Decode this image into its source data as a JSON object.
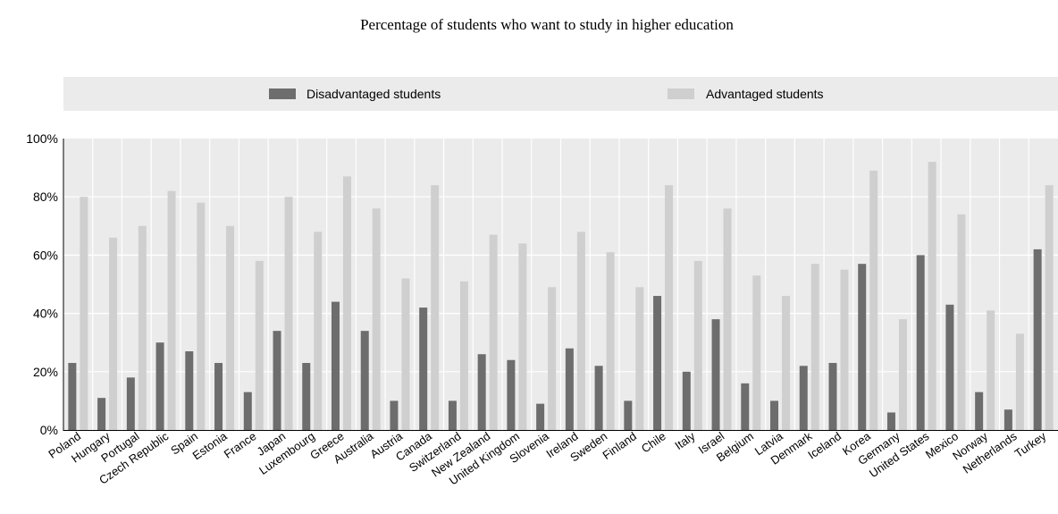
{
  "chart_data": {
    "type": "bar",
    "title": "Percentage of students who want to study in higher education",
    "xlabel": "",
    "ylabel": "",
    "ylim": [
      0,
      100
    ],
    "yticks": [
      "0%",
      "20%",
      "40%",
      "60%",
      "80%",
      "100%"
    ],
    "grid": true,
    "legend_position": "top",
    "categories": [
      "Poland",
      "Hungary",
      "Portugal",
      "Czech Republic",
      "Spain",
      "Estonia",
      "France",
      "Japan",
      "Luxembourg",
      "Greece",
      "Australia",
      "Austria",
      "Canada",
      "Switzerland",
      "New Zealand",
      "United Kingdom",
      "Slovenia",
      "Ireland",
      "Sweden",
      "Finland",
      "Chile",
      "Italy",
      "Israel",
      "Belgium",
      "Latvia",
      "Denmark",
      "Iceland",
      "Korea",
      "Germany",
      "United States",
      "Mexico",
      "Norway",
      "Netherlands",
      "Turkey"
    ],
    "series": [
      {
        "name": "Disadvantaged students",
        "color": "#6d6d6d",
        "values": [
          23,
          11,
          18,
          30,
          27,
          23,
          13,
          34,
          23,
          44,
          34,
          10,
          42,
          10,
          26,
          24,
          9,
          28,
          22,
          10,
          46,
          20,
          38,
          16,
          10,
          22,
          23,
          57,
          6,
          60,
          43,
          13,
          7,
          62
        ]
      },
      {
        "name": "Advantaged students",
        "color": "#cfcfcf",
        "values": [
          80,
          66,
          70,
          82,
          78,
          70,
          58,
          80,
          68,
          87,
          76,
          52,
          84,
          51,
          67,
          64,
          49,
          68,
          61,
          49,
          84,
          58,
          76,
          53,
          46,
          57,
          55,
          89,
          38,
          92,
          74,
          41,
          33,
          84
        ]
      }
    ]
  }
}
